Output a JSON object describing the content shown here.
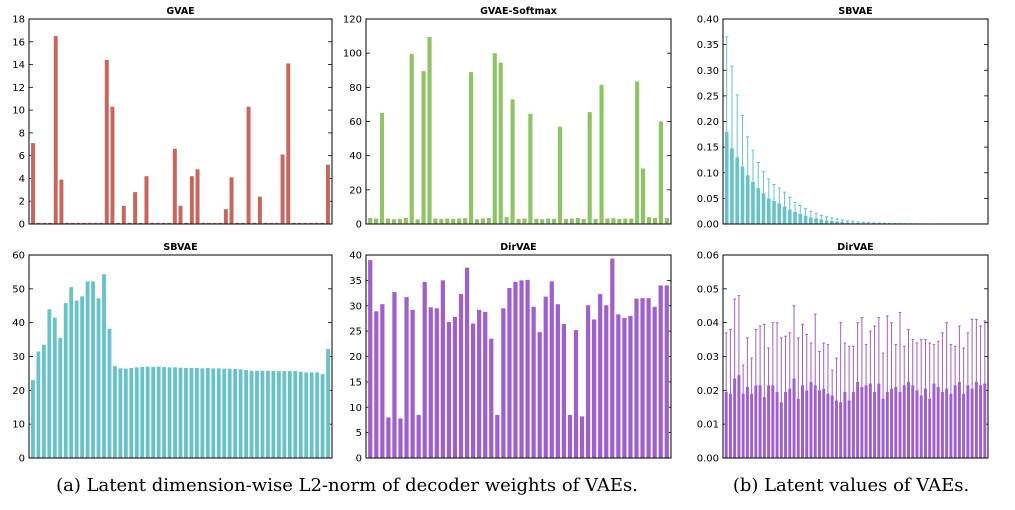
{
  "captions": {
    "a": "(a) Latent dimension-wise L2-norm of decoder weights of VAEs.",
    "b": "(b) Latent values of VAEs."
  },
  "chart_data": [
    {
      "type": "bar",
      "title": "GVAE",
      "color": "#c8665e",
      "ylim": [
        0,
        18
      ],
      "yticks": [
        "0",
        "2",
        "4",
        "6",
        "8",
        "10",
        "12",
        "14",
        "16",
        "18"
      ],
      "values": [
        7.1,
        0.1,
        0.1,
        0.1,
        16.5,
        3.9,
        0.1,
        0.1,
        0.1,
        0.1,
        0.1,
        0.1,
        0.1,
        14.4,
        10.3,
        0.1,
        1.6,
        0.1,
        2.8,
        0.1,
        4.2,
        0.1,
        0.1,
        0.1,
        0.1,
        6.6,
        1.6,
        0.1,
        4.2,
        4.8,
        0.1,
        0.1,
        0.1,
        0.1,
        1.3,
        4.1,
        0.1,
        0.1,
        10.3,
        0.1,
        2.4,
        0.1,
        0.1,
        0.1,
        6.1,
        14.1,
        0.1,
        0.1,
        0.1,
        0.1,
        0.1,
        0.1,
        5.2
      ]
    },
    {
      "type": "bar",
      "title": "GVAE-Softmax",
      "color": "#8ec466",
      "ylim": [
        0,
        120
      ],
      "yticks": [
        "0",
        "20",
        "40",
        "60",
        "80",
        "100",
        "120"
      ],
      "values": [
        3.5,
        3.2,
        65,
        3.2,
        2.8,
        3.0,
        3.5,
        99.5,
        2.8,
        89.5,
        109.5,
        3.2,
        3.0,
        3.2,
        3.0,
        3.2,
        3.4,
        89,
        2.8,
        3.2,
        3.5,
        100,
        94.5,
        4.0,
        73,
        3.0,
        3.2,
        64.5,
        3.0,
        2.8,
        3.2,
        3.0,
        57,
        3.0,
        3.2,
        3.5,
        3.0,
        65.5,
        3.0,
        81.5,
        3.2,
        3.4,
        3.0,
        3.2,
        3.2,
        83.5,
        32.5,
        4.0,
        3.5,
        60,
        3.5
      ]
    },
    {
      "type": "bar",
      "title": "SBVAE",
      "color": "#67c3c9",
      "ylim": [
        0,
        0.4
      ],
      "yticks": [
        "0.00",
        "0.05",
        "0.10",
        "0.15",
        "0.20",
        "0.25",
        "0.30",
        "0.35",
        "0.40"
      ],
      "values": [
        0.18,
        0.148,
        0.13,
        0.112,
        0.095,
        0.082,
        0.07,
        0.06,
        0.05,
        0.045,
        0.04,
        0.034,
        0.028,
        0.024,
        0.02,
        0.016,
        0.013,
        0.011,
        0.009,
        0.007,
        0.006,
        0.005,
        0.004,
        0.003,
        0.0025,
        0.002,
        0.0015,
        0.0012,
        0.001,
        0.0008,
        0.0006,
        0.0005,
        0.0004,
        0.0003,
        0.0002,
        0.0002,
        0.0001,
        0.0001,
        0.0001,
        0.0001,
        0.0001,
        0.0001,
        0.0001,
        0.0001,
        0.0001,
        0.0001,
        0.0001,
        0.0001,
        0.0001,
        0.0001
      ],
      "errors": [
        0.185,
        0.16,
        0.122,
        0.1,
        0.075,
        0.062,
        0.05,
        0.042,
        0.038,
        0.032,
        0.03,
        0.028,
        0.024,
        0.018,
        0.016,
        0.014,
        0.012,
        0.01,
        0.008,
        0.007,
        0.006,
        0.005,
        0.004,
        0.003,
        0.003,
        0.002,
        0.002,
        0.0015,
        0.001,
        0.001,
        0.0008,
        0.0006,
        0.0005,
        0.0004,
        0.0003,
        0.0002,
        0.0002,
        0.0001,
        0.0001,
        0.0001,
        0.0001,
        0.0001,
        0.0001,
        0.0001,
        0.0001,
        0.0001,
        0.0001,
        0.0001,
        0.0001,
        0.0001
      ]
    },
    {
      "type": "bar",
      "title": "SBVAE",
      "color": "#67c3c9",
      "ylim": [
        0,
        60
      ],
      "yticks": [
        "0",
        "10",
        "20",
        "30",
        "40",
        "50",
        "60"
      ],
      "values": [
        23,
        31.5,
        33.5,
        44,
        41.5,
        35.5,
        45.8,
        50.5,
        46.5,
        47.8,
        52.2,
        52.2,
        47.2,
        54.3,
        38.2,
        27.2,
        26.5,
        26.4,
        26.6,
        26.8,
        26.9,
        27.0,
        26.9,
        27.0,
        26.9,
        26.8,
        26.8,
        26.7,
        26.6,
        26.6,
        26.6,
        26.5,
        26.6,
        26.5,
        26.5,
        26.4,
        26.4,
        26.3,
        26.2,
        26.0,
        25.8,
        25.8,
        25.8,
        25.8,
        25.8,
        25.7,
        25.7,
        25.7,
        25.7,
        25.5,
        25.3,
        25.3,
        25.3,
        24.8,
        32.2
      ]
    },
    {
      "type": "bar",
      "title": "DirVAE",
      "color": "#9f5fcc",
      "ylim": [
        0,
        40
      ],
      "yticks": [
        "0",
        "5",
        "10",
        "15",
        "20",
        "25",
        "30",
        "35",
        "40"
      ],
      "values": [
        39,
        28.9,
        30.3,
        8,
        32.7,
        7.8,
        31.7,
        29.2,
        8.5,
        34.7,
        29.7,
        29.5,
        35,
        26.8,
        27.8,
        32.3,
        37.5,
        26.5,
        29.2,
        28.8,
        23.5,
        8.5,
        29.5,
        33.5,
        34.7,
        35,
        35.1,
        29.8,
        24.8,
        31.8,
        34.8,
        30.3,
        26.4,
        8.5,
        25.2,
        8.2,
        30.1,
        27.3,
        32.3,
        30.1,
        39.3,
        28.3,
        27.6,
        28,
        31.4,
        31.5,
        31.5,
        29.8,
        34,
        34
      ]
    },
    {
      "type": "bar",
      "title": "DirVAE",
      "color": "#9f5fcc",
      "ylim": [
        0,
        0.06
      ],
      "yticks": [
        "0.00",
        "0.01",
        "0.02",
        "0.03",
        "0.04",
        "0.05",
        "0.06"
      ],
      "values": [
        0.0195,
        0.019,
        0.0235,
        0.0245,
        0.019,
        0.021,
        0.019,
        0.0215,
        0.0215,
        0.018,
        0.0215,
        0.0215,
        0.0195,
        0.0165,
        0.0195,
        0.0205,
        0.0235,
        0.0175,
        0.0215,
        0.02,
        0.0225,
        0.0215,
        0.02,
        0.0205,
        0.019,
        0.0185,
        0.017,
        0.0165,
        0.0195,
        0.017,
        0.0195,
        0.0225,
        0.021,
        0.0215,
        0.022,
        0.0195,
        0.022,
        0.0175,
        0.0195,
        0.0205,
        0.021,
        0.0195,
        0.0215,
        0.0225,
        0.0215,
        0.02,
        0.0185,
        0.0205,
        0.0175,
        0.022,
        0.021,
        0.0195,
        0.0205,
        0.019,
        0.0215,
        0.0225,
        0.019,
        0.0215,
        0.0205,
        0.0225,
        0.0215,
        0.022
      ],
      "errors": [
        0.0175,
        0.019,
        0.0235,
        0.0235,
        0.0085,
        0.0145,
        0.0105,
        0.0165,
        0.0175,
        0.0215,
        0.011,
        0.0185,
        0.0205,
        0.019,
        0.0165,
        0.0165,
        0.0215,
        0.018,
        0.018,
        0.0165,
        0.0115,
        0.021,
        0.0115,
        0.0135,
        0.0145,
        0.0075,
        0.0125,
        0.0235,
        0.0145,
        0.016,
        0.0135,
        0.0175,
        0.0205,
        0.012,
        0.0155,
        0.0195,
        0.0195,
        0.0135,
        0.0225,
        0.0195,
        0.0125,
        0.0235,
        0.0115,
        0.0155,
        0.0135,
        0.014,
        0.0165,
        0.0145,
        0.0165,
        0.0115,
        0.0135,
        0.0175,
        0.0195,
        0.0145,
        0.0115,
        0.0165,
        0.0135,
        0.0155,
        0.0205,
        0.0185,
        0.0175,
        0.0185
      ]
    }
  ]
}
